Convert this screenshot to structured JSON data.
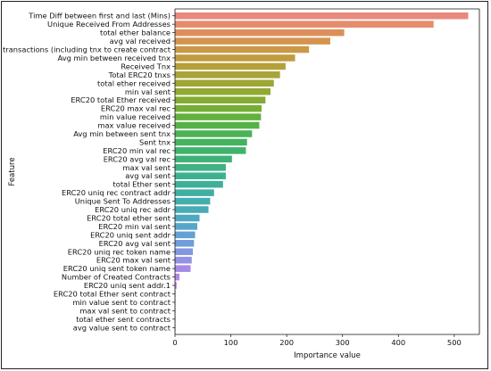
{
  "chart_data": {
    "type": "bar",
    "orientation": "horizontal",
    "xlabel": "Importance value",
    "ylabel": "Feature",
    "xlim": [
      0,
      545
    ],
    "xticks": [
      0,
      100,
      200,
      300,
      400,
      500
    ],
    "grid": false,
    "categories": [
      "Time Diff between first and last (Mins)",
      "Unique Received From Addresses",
      "total ether balance",
      "avg val received",
      "total transactions (including tnx to create contract",
      "Avg min between received tnx",
      "Received Tnx",
      "Total ERC20 tnxs",
      "total ether received",
      "min val sent",
      "ERC20 total Ether received",
      "ERC20 max val rec",
      "min value received",
      "max value received",
      "Avg min between sent tnx",
      "Sent tnx",
      "ERC20 min val rec",
      "ERC20 avg val rec",
      "max val sent",
      "avg val sent",
      "total Ether sent",
      "ERC20 uniq rec contract addr",
      "Unique Sent To Addresses",
      "ERC20 uniq rec addr",
      "ERC20 total ether sent",
      "ERC20 min val sent",
      "ERC20 uniq sent addr",
      "ERC20 avg val sent",
      "ERC20 uniq rec token name",
      "ERC20 max val sent",
      "ERC20 uniq sent token name",
      "Number of Created Contracts",
      "ERC20 uniq sent addr.1",
      "ERC20 total Ether sent contract",
      "min value sent to contract",
      "max val sent to contract",
      "total ether sent contracts",
      "avg value sent to contract"
    ],
    "values": [
      525,
      463,
      303,
      278,
      240,
      215,
      198,
      188,
      177,
      171,
      162,
      155,
      154,
      151,
      138,
      129,
      127,
      102,
      91,
      91,
      86,
      70,
      63,
      60,
      44,
      40,
      36,
      34,
      32,
      30,
      28,
      8,
      3,
      0.8,
      0.5,
      0.3,
      0.2,
      0.1
    ],
    "colors": [
      "#e8897e",
      "#e58c6c",
      "#dd8f5a",
      "#d5934e",
      "#cb9846",
      "#c09c3f",
      "#b5a03a",
      "#aaa336",
      "#9ea634",
      "#92a932",
      "#84ab32",
      "#74ae36",
      "#64b03c",
      "#55b247",
      "#4ab353",
      "#43b35f",
      "#3fb36b",
      "#3eb277",
      "#3db283",
      "#3db18e",
      "#3eb098",
      "#41aea3",
      "#44adad",
      "#48abb6",
      "#4fa8c1",
      "#58a5cb",
      "#64a1d4",
      "#729cdb",
      "#8397e1",
      "#9492e5",
      "#a48ce6",
      "#b488e5",
      "#c284e2",
      "#ce81dc",
      "#d880d4",
      "#e07fca",
      "#e680bf",
      "#ea82b3"
    ]
  }
}
